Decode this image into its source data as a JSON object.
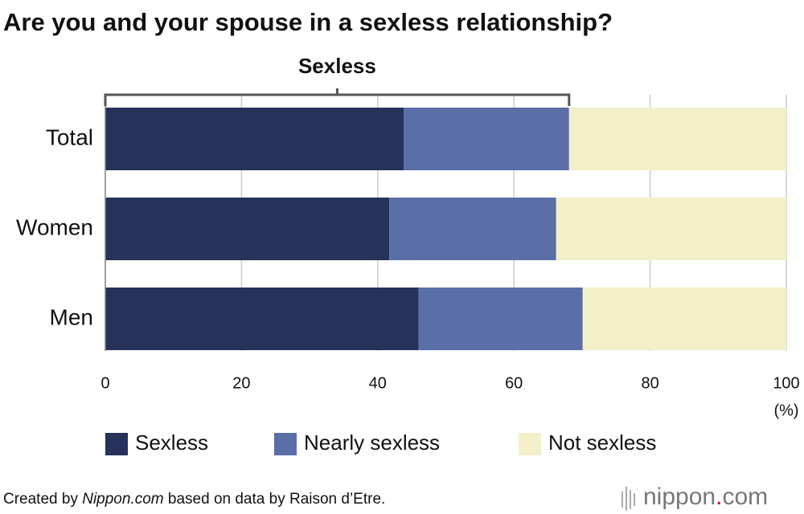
{
  "chart_data": {
    "type": "bar",
    "orientation": "horizontal",
    "stacked": true,
    "title": "Are you and your spouse in a sexless relationship?",
    "annotation": "Sexless",
    "categories": [
      "Total",
      "Women",
      "Men"
    ],
    "series": [
      {
        "name": "Sexless",
        "color": "#26325a",
        "values": [
          43.8,
          41.7,
          46.0
        ]
      },
      {
        "name": "Nearly sexless",
        "color": "#5a6ea8",
        "values": [
          24.3,
          24.5,
          24.1
        ]
      },
      {
        "name": "Not sexless",
        "color": "#f3efc8",
        "values": [
          31.9,
          33.8,
          29.9
        ]
      }
    ],
    "xlim": [
      0,
      100
    ],
    "xticks": [
      0,
      20,
      40,
      60,
      80,
      100
    ],
    "x_unit": "(%)",
    "grid": true,
    "source": [
      "Created by ",
      "Nippon.com",
      " based on data by Raison d’Etre."
    ],
    "logo": [
      "nippon",
      ".",
      "com"
    ]
  }
}
